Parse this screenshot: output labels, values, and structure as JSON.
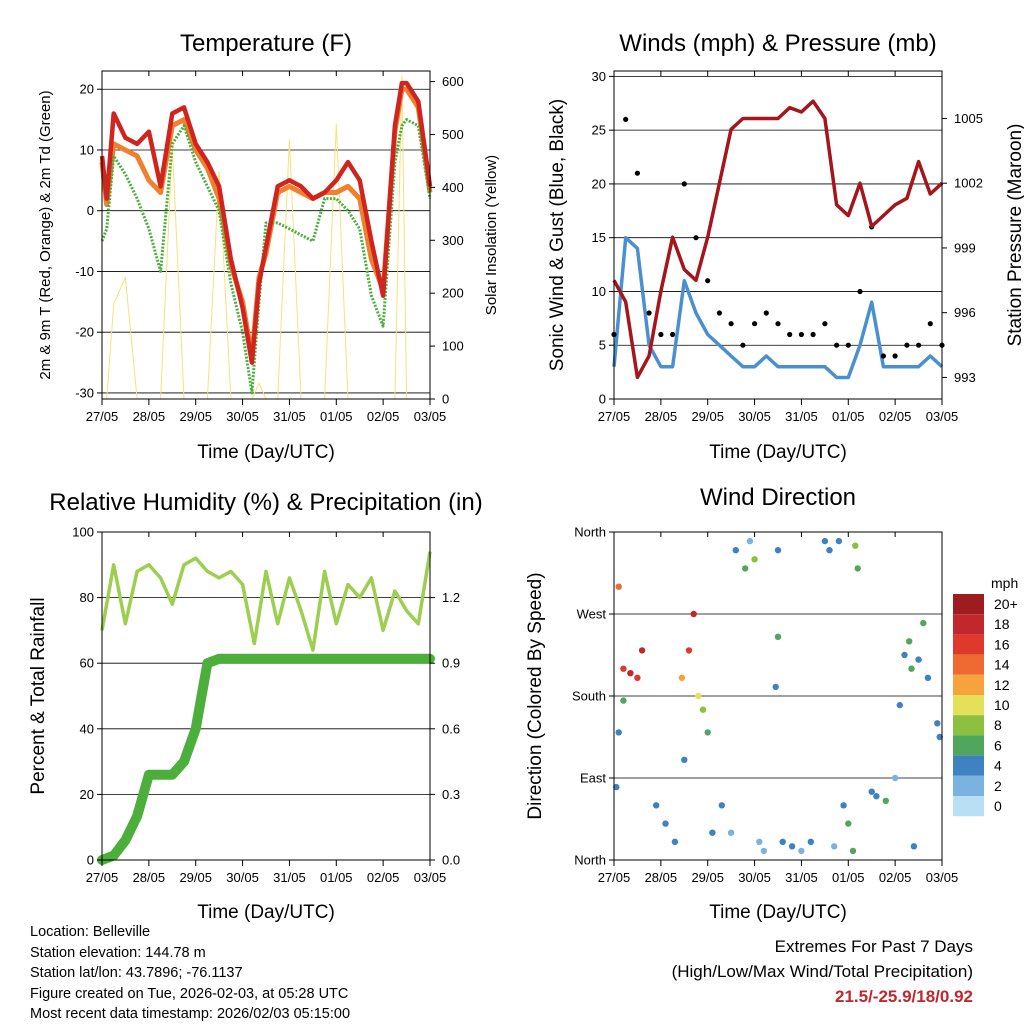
{
  "panels": {
    "temperature": {
      "title": "Temperature (F)",
      "ylabel_left": "2m & 9m T (Red, Orange) & 2m Td (Green)",
      "ylabel_right": "Solar Insolation (Yellow)",
      "xlabel": "Time (Day/UTC)"
    },
    "winds": {
      "title": "Winds (mph) & Pressure (mb)",
      "ylabel_left": "Sonic Wind & Gust (Blue, Black)",
      "ylabel_right": "Station Pressure (Maroon)",
      "xlabel": "Time (Day/UTC)"
    },
    "humidity": {
      "title": "Relative Humidity (%) & Precipitation (in)",
      "ylabel_left": "Percent & Total Rainfall",
      "xlabel": "Time (Day/UTC)"
    },
    "direction": {
      "title": "Wind Direction",
      "ylabel_left": "Direction (Colored By Speed)",
      "xlabel": "Time (Day/UTC)"
    }
  },
  "legend": {
    "title": "mph",
    "labels": [
      "20+",
      "18",
      "16",
      "14",
      "12",
      "10",
      "8",
      "6",
      "4",
      "2",
      "0"
    ],
    "colors": [
      "#9e1b1f",
      "#c0282d",
      "#de3a2c",
      "#ef6a32",
      "#f6a33e",
      "#e4e05a",
      "#8cc13f",
      "#4fa65c",
      "#3f82c1",
      "#7ab3df",
      "#b8dff4"
    ]
  },
  "station": {
    "location": "Location: Belleville",
    "elevation": "Station elevation: 144.78 m",
    "latlon": "Station lat/lon: 43.7896; -76.1137",
    "created": "Figure created on Tue, 2026-02-03, at 05:28 UTC",
    "recent": "Most recent data timestamp: 2026/02/03 05:15:00"
  },
  "extremes": {
    "heading": "Extremes For Past 7 Days",
    "subheading": "(High/Low/Max Wind/Total Precipitation)",
    "values": "21.5/-25.9/18/0.92"
  },
  "colors": {
    "t2m": "#d0241f",
    "t9m": "#f07f2e",
    "td2m": "#4caf3c",
    "solar": "#f6e27a",
    "wind": "#4a90d0",
    "gust": "#000000",
    "pressure": "#a4151c",
    "rh": "#9ccf50",
    "precip": "#4caf3c"
  },
  "chart_data": [
    {
      "type": "line",
      "title": "Temperature (F)",
      "xlabel": "Time (Day/UTC)",
      "ylabel": "2m & 9m T (Red, Orange) & 2m Td (Green)",
      "ylabel_right": "Solar Insolation (Yellow)",
      "categories": [
        "27/05",
        "28/05",
        "29/05",
        "30/05",
        "31/05",
        "01/05",
        "02/05",
        "03/05"
      ],
      "ylim": [
        -31,
        23
      ],
      "yticks": [
        -30,
        -20,
        -10,
        0,
        10,
        20
      ],
      "ylim_right": [
        0,
        620
      ],
      "yticks_right": [
        0,
        100,
        200,
        300,
        400,
        500,
        600
      ],
      "x": [
        0,
        0.1,
        0.25,
        0.5,
        0.75,
        1.0,
        1.25,
        1.5,
        1.75,
        2.0,
        2.25,
        2.5,
        2.75,
        3.0,
        3.2,
        3.35,
        3.5,
        3.75,
        4.0,
        4.25,
        4.5,
        4.75,
        5.0,
        5.25,
        5.5,
        5.75,
        6.0,
        6.25,
        6.4,
        6.5,
        6.75,
        7.0
      ],
      "series": [
        {
          "name": "2m T",
          "axis": "left",
          "values": [
            9,
            2,
            16,
            12,
            11,
            13,
            4,
            16,
            17,
            11,
            8,
            4,
            -8,
            -16,
            -25,
            -12,
            -6,
            4,
            5,
            4,
            2,
            3,
            5,
            8,
            5,
            -5,
            -14,
            14,
            21,
            21,
            18,
            4
          ]
        },
        {
          "name": "9m T",
          "axis": "left",
          "values": [
            8,
            1,
            11,
            10,
            9,
            5,
            3,
            14,
            15,
            10,
            7,
            2,
            -9,
            -15,
            -24,
            -11,
            -7,
            3,
            4,
            3,
            2,
            3,
            3,
            4,
            2,
            -8,
            -13,
            13,
            20,
            20,
            17,
            3
          ]
        },
        {
          "name": "2m Td",
          "axis": "left",
          "values": [
            -5,
            -3,
            9,
            6,
            2,
            -3,
            -10,
            11,
            14,
            8,
            4,
            0,
            -12,
            -20,
            -30,
            -15,
            -2,
            -2,
            -3,
            -4,
            -5,
            2,
            2,
            0,
            -3,
            -14,
            -19,
            8,
            14,
            15,
            14,
            2
          ]
        },
        {
          "name": "Solar",
          "axis": "right",
          "values": [
            0,
            0,
            180,
            230,
            0,
            0,
            0,
            480,
            0,
            0,
            0,
            430,
            0,
            0,
            0,
            30,
            0,
            0,
            490,
            0,
            0,
            0,
            520,
            0,
            0,
            0,
            0,
            0,
            610,
            0,
            0,
            0
          ]
        }
      ]
    },
    {
      "type": "scatter",
      "title": "Winds (mph) & Pressure (mb)",
      "xlabel": "Time (Day/UTC)",
      "ylabel": "Sonic Wind & Gust (Blue, Black)",
      "ylabel_right": "Station Pressure (Maroon)",
      "categories": [
        "27/05",
        "28/05",
        "29/05",
        "30/05",
        "31/05",
        "01/05",
        "02/05",
        "03/05"
      ],
      "ylim": [
        0,
        30.5
      ],
      "yticks": [
        0,
        5,
        10,
        15,
        20,
        25,
        30
      ],
      "ylim_right": [
        992,
        1007.2
      ],
      "yticks_right": [
        993,
        996,
        999,
        1002,
        1005
      ],
      "x": [
        0,
        0.25,
        0.5,
        0.75,
        1.0,
        1.25,
        1.5,
        1.75,
        2.0,
        2.25,
        2.5,
        2.75,
        3.0,
        3.25,
        3.5,
        3.75,
        4.0,
        4.25,
        4.5,
        4.75,
        5.0,
        5.25,
        5.5,
        5.75,
        6.0,
        6.25,
        6.5,
        6.75,
        7.0
      ],
      "series": [
        {
          "name": "Sonic Wind",
          "axis": "left",
          "values": [
            3,
            15,
            14,
            5,
            3,
            3,
            11,
            8,
            6,
            5,
            4,
            3,
            3,
            4,
            3,
            3,
            3,
            3,
            3,
            2,
            2,
            5,
            9,
            3,
            3,
            3,
            3,
            4,
            3
          ]
        },
        {
          "name": "Gust",
          "axis": "left",
          "values": [
            6,
            26,
            21,
            8,
            6,
            6,
            20,
            15,
            11,
            8,
            7,
            5,
            7,
            8,
            7,
            6,
            6,
            6,
            7,
            5,
            5,
            10,
            16,
            4,
            4,
            5,
            5,
            7,
            5
          ]
        },
        {
          "name": "Station Pressure",
          "axis": "right",
          "values": [
            997.5,
            996.5,
            993,
            994,
            997,
            999.5,
            998,
            997.5,
            999.5,
            1002,
            1004.5,
            1005,
            1005,
            1005,
            1005,
            1005.5,
            1005.3,
            1005.8,
            1005,
            1001,
            1000.5,
            1002,
            1000,
            1000.5,
            1001,
            1001.3,
            1003,
            1001.5,
            1002
          ]
        }
      ]
    },
    {
      "type": "line",
      "title": "Relative Humidity (%) & Precipitation (in)",
      "xlabel": "Time (Day/UTC)",
      "ylabel": "Percent & Total Rainfall",
      "categories": [
        "27/05",
        "28/05",
        "29/05",
        "30/05",
        "31/05",
        "01/05",
        "02/05",
        "03/05"
      ],
      "ylim": [
        0,
        100
      ],
      "yticks": [
        0,
        20,
        40,
        60,
        80,
        100
      ],
      "ylim_right": [
        0,
        1.5
      ],
      "yticks_right": [
        0.0,
        0.3,
        0.6,
        0.9,
        1.2
      ],
      "x": [
        0,
        0.25,
        0.5,
        0.75,
        1.0,
        1.25,
        1.5,
        1.75,
        2.0,
        2.25,
        2.5,
        2.75,
        3.0,
        3.25,
        3.5,
        3.75,
        4.0,
        4.25,
        4.5,
        4.75,
        5.0,
        5.25,
        5.5,
        5.75,
        6.0,
        6.25,
        6.5,
        6.75,
        7.0
      ],
      "series": [
        {
          "name": "Relative Humidity",
          "axis": "left",
          "values": [
            70,
            90,
            72,
            88,
            90,
            86,
            78,
            90,
            92,
            88,
            86,
            88,
            84,
            66,
            88,
            72,
            86,
            76,
            64,
            88,
            72,
            84,
            80,
            86,
            70,
            82,
            76,
            72,
            94
          ]
        },
        {
          "name": "Total Rainfall",
          "axis": "right",
          "values": [
            0.0,
            0.02,
            0.09,
            0.2,
            0.39,
            0.39,
            0.39,
            0.45,
            0.6,
            0.9,
            0.92,
            0.92,
            0.92,
            0.92,
            0.92,
            0.92,
            0.92,
            0.92,
            0.92,
            0.92,
            0.92,
            0.92,
            0.92,
            0.92,
            0.92,
            0.92,
            0.92,
            0.92,
            0.92
          ]
        }
      ]
    },
    {
      "type": "scatter",
      "title": "Wind Direction",
      "xlabel": "Time (Day/UTC)",
      "ylabel": "Direction (Colored By Speed)",
      "categories": [
        "27/05",
        "28/05",
        "29/05",
        "30/05",
        "31/05",
        "01/05",
        "02/05",
        "03/05"
      ],
      "ylim": [
        0,
        360
      ],
      "yticks": [
        0,
        90,
        180,
        270,
        360
      ],
      "ytick_labels": [
        "North",
        "East",
        "South",
        "West",
        "North"
      ],
      "points": [
        {
          "x": 0.1,
          "y": 300,
          "speed": 14
        },
        {
          "x": 0.2,
          "y": 210,
          "speed": 16
        },
        {
          "x": 0.35,
          "y": 205,
          "speed": 18
        },
        {
          "x": 0.5,
          "y": 200,
          "speed": 16
        },
        {
          "x": 0.6,
          "y": 230,
          "speed": 18
        },
        {
          "x": 0.05,
          "y": 80,
          "speed": 4
        },
        {
          "x": 0.1,
          "y": 140,
          "speed": 4
        },
        {
          "x": 0.2,
          "y": 175,
          "speed": 6
        },
        {
          "x": 0.9,
          "y": 60,
          "speed": 4
        },
        {
          "x": 1.1,
          "y": 40,
          "speed": 3
        },
        {
          "x": 1.3,
          "y": 20,
          "speed": 4
        },
        {
          "x": 1.5,
          "y": 110,
          "speed": 4
        },
        {
          "x": 1.45,
          "y": 200,
          "speed": 12
        },
        {
          "x": 1.6,
          "y": 230,
          "speed": 16
        },
        {
          "x": 1.7,
          "y": 270,
          "speed": 18
        },
        {
          "x": 1.8,
          "y": 180,
          "speed": 10
        },
        {
          "x": 1.9,
          "y": 165,
          "speed": 8
        },
        {
          "x": 2.0,
          "y": 140,
          "speed": 6
        },
        {
          "x": 2.1,
          "y": 30,
          "speed": 3
        },
        {
          "x": 2.3,
          "y": 60,
          "speed": 3
        },
        {
          "x": 2.6,
          "y": 340,
          "speed": 4
        },
        {
          "x": 2.8,
          "y": 320,
          "speed": 6
        },
        {
          "x": 2.9,
          "y": 350,
          "speed": 2
        },
        {
          "x": 3.0,
          "y": 330,
          "speed": 8
        },
        {
          "x": 3.1,
          "y": 20,
          "speed": 2
        },
        {
          "x": 3.2,
          "y": 10,
          "speed": 1
        },
        {
          "x": 3.5,
          "y": 340,
          "speed": 3
        },
        {
          "x": 3.45,
          "y": 190,
          "speed": 4
        },
        {
          "x": 3.5,
          "y": 245,
          "speed": 6
        },
        {
          "x": 3.6,
          "y": 20,
          "speed": 4
        },
        {
          "x": 3.8,
          "y": 15,
          "speed": 3
        },
        {
          "x": 4.0,
          "y": 10,
          "speed": 2
        },
        {
          "x": 4.2,
          "y": 20,
          "speed": 3
        },
        {
          "x": 4.5,
          "y": 350,
          "speed": 4
        },
        {
          "x": 4.6,
          "y": 340,
          "speed": 3
        },
        {
          "x": 4.7,
          "y": 15,
          "speed": 2
        },
        {
          "x": 4.8,
          "y": 350,
          "speed": 4
        },
        {
          "x": 4.9,
          "y": 60,
          "speed": 4
        },
        {
          "x": 5.0,
          "y": 40,
          "speed": 6
        },
        {
          "x": 5.15,
          "y": 345,
          "speed": 8
        },
        {
          "x": 5.2,
          "y": 320,
          "speed": 6
        },
        {
          "x": 5.1,
          "y": 10,
          "speed": 6
        },
        {
          "x": 5.5,
          "y": 75,
          "speed": 4
        },
        {
          "x": 5.6,
          "y": 70,
          "speed": 4
        },
        {
          "x": 5.8,
          "y": 65,
          "speed": 5
        },
        {
          "x": 6.0,
          "y": 90,
          "speed": 2
        },
        {
          "x": 6.1,
          "y": 170,
          "speed": 3
        },
        {
          "x": 6.2,
          "y": 225,
          "speed": 4
        },
        {
          "x": 6.3,
          "y": 240,
          "speed": 6
        },
        {
          "x": 6.35,
          "y": 210,
          "speed": 5
        },
        {
          "x": 6.5,
          "y": 220,
          "speed": 4
        },
        {
          "x": 6.6,
          "y": 260,
          "speed": 6
        },
        {
          "x": 6.7,
          "y": 200,
          "speed": 4
        },
        {
          "x": 6.9,
          "y": 150,
          "speed": 4
        },
        {
          "x": 6.95,
          "y": 135,
          "speed": 3
        },
        {
          "x": 6.4,
          "y": 15,
          "speed": 3
        },
        {
          "x": 2.5,
          "y": 30,
          "speed": 2
        }
      ]
    }
  ]
}
